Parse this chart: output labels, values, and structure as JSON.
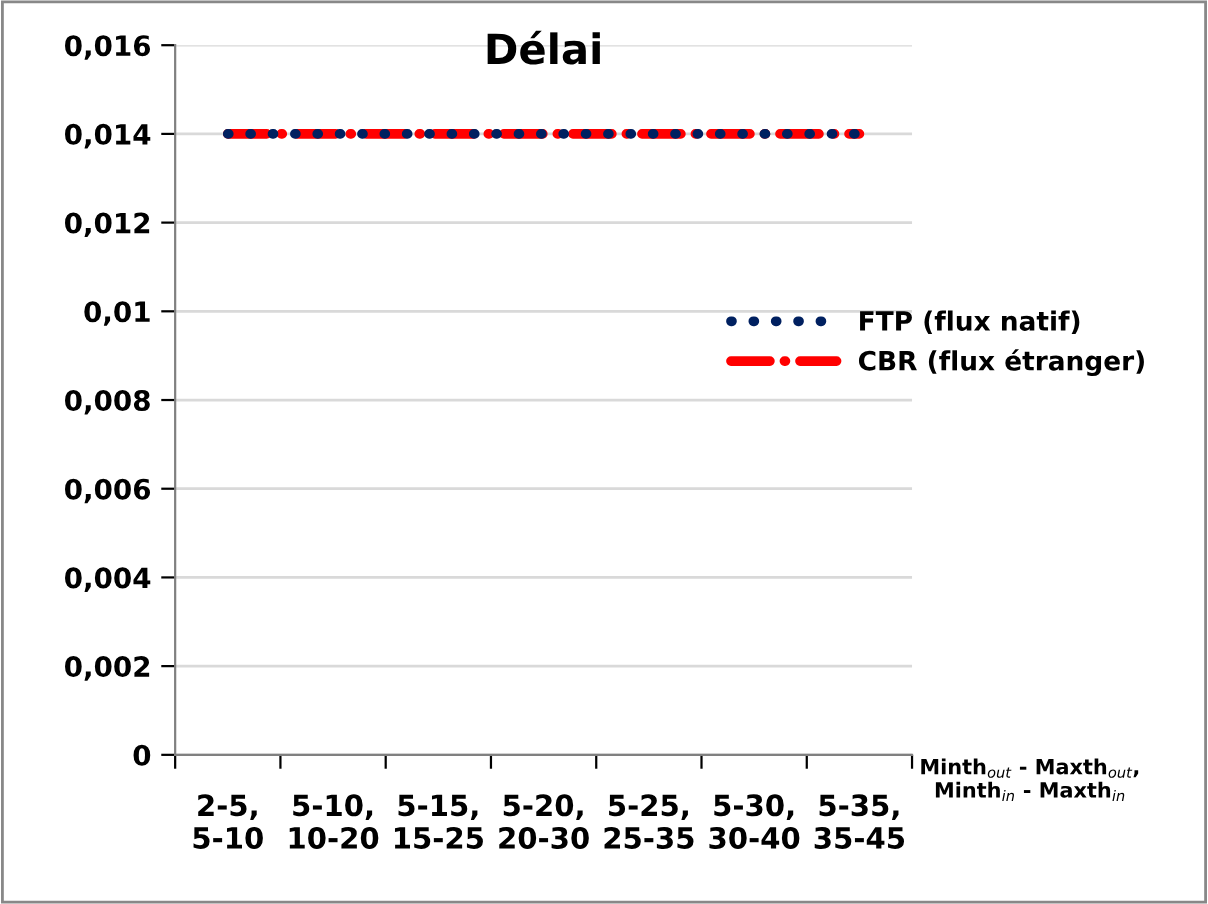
{
  "chart_data": {
    "type": "line",
    "title": "Délai",
    "xlabel": "Minth$_{out}$ - Maxth$_{out}$,\nMinth$_{in}$ - Maxth$_{in}$",
    "categories": [
      "2-5,\n5-10",
      "5-10,\n10-20",
      "5-15,\n15-25",
      "5-20,\n20-30",
      "5-25,\n25-35",
      "5-30,\n30-40",
      "5-35,\n35-45"
    ],
    "series": [
      {
        "name": "FTP (flux natif)",
        "color": "#002060",
        "line_style": "dotted",
        "values": [
          0.014,
          0.014,
          0.014,
          0.014,
          0.014,
          0.014,
          0.014
        ]
      },
      {
        "name": "CBR (flux étranger)",
        "color": "#ff0000",
        "line_style": "dashed",
        "values": [
          0.014,
          0.014,
          0.014,
          0.014,
          0.014,
          0.014,
          0.014
        ]
      }
    ],
    "ylim": [
      0,
      0.016
    ],
    "yticks": [
      {
        "value": 0,
        "label": "0"
      },
      {
        "value": 0.002,
        "label": "0,002"
      },
      {
        "value": 0.004,
        "label": "0,004"
      },
      {
        "value": 0.006,
        "label": "0,006"
      },
      {
        "value": 0.008,
        "label": "0,008"
      },
      {
        "value": 0.01,
        "label": "0,01"
      },
      {
        "value": 0.012,
        "label": "0,012"
      },
      {
        "value": 0.014,
        "label": "0,014"
      },
      {
        "value": 0.016,
        "label": "0,016"
      }
    ],
    "grid": "y",
    "legend": "right"
  }
}
